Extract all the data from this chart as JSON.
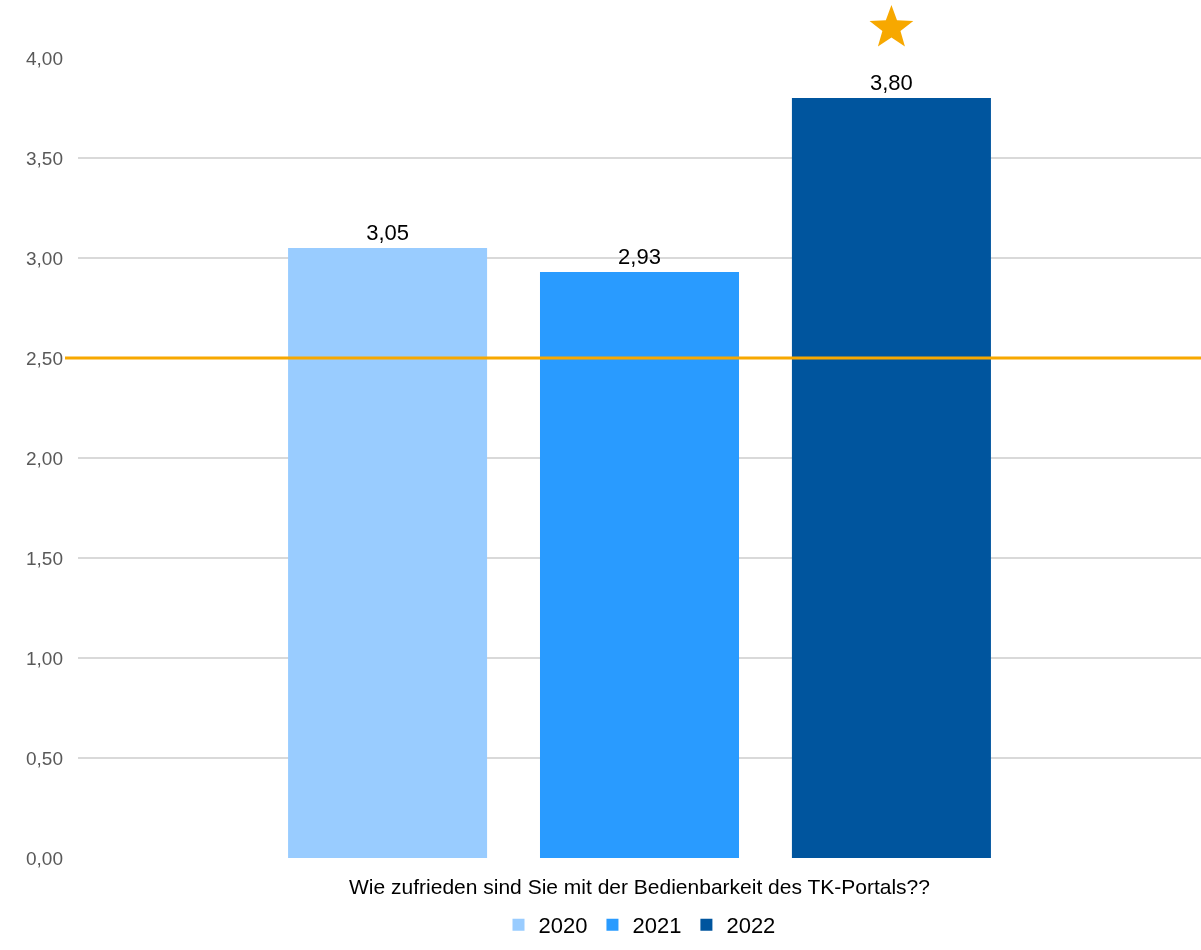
{
  "chart_data": {
    "type": "bar",
    "categories": [
      "Wie zufrieden sind Sie mit der Bedienbarkeit des TK-Portals??"
    ],
    "series": [
      {
        "name": "2020",
        "color": "#99ccff",
        "values": [
          3.05
        ],
        "value_labels": [
          "3,05"
        ]
      },
      {
        "name": "2021",
        "color": "#299bff",
        "values": [
          2.93
        ],
        "value_labels": [
          "2,93"
        ]
      },
      {
        "name": "2022",
        "color": "#00559e",
        "values": [
          3.8
        ],
        "value_labels": [
          "3,80"
        ]
      }
    ],
    "ylim": [
      0,
      4
    ],
    "yticks": [
      {
        "value": 0,
        "label": "0,00"
      },
      {
        "value": 0.5,
        "label": "0,50"
      },
      {
        "value": 1,
        "label": "1,00"
      },
      {
        "value": 1.5,
        "label": "1,50"
      },
      {
        "value": 2,
        "label": "2,00"
      },
      {
        "value": 2.5,
        "label": "2,50"
      },
      {
        "value": 3,
        "label": "3,00"
      },
      {
        "value": 3.5,
        "label": "3,50"
      },
      {
        "value": 4,
        "label": "4,00"
      }
    ],
    "grid": "y",
    "legend": "bottom",
    "ref_lines": [
      {
        "axis": "y",
        "value": 2.5,
        "color": "#f7a800"
      }
    ]
  }
}
